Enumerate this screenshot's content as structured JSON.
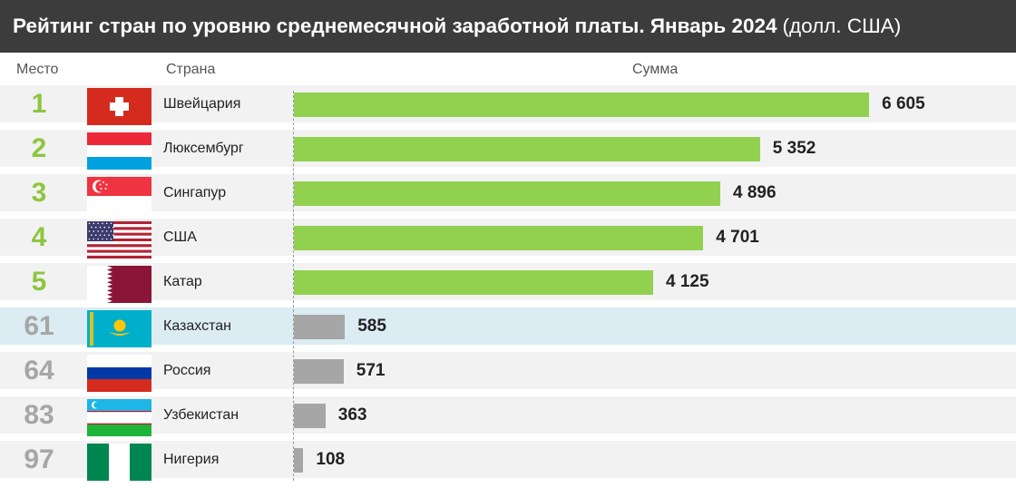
{
  "header": {
    "title_bold": "Рейтинг стран по уровню среднемесячной заработной платы. Январь 2024",
    "title_unit": "(долл. США)"
  },
  "columns": {
    "rank": "Место",
    "country": "Страна",
    "amount": "Сумма"
  },
  "colors": {
    "top_rank": "#8dc63f",
    "top_bar": "#92d050",
    "other_rank": "#a6a6a6",
    "other_bar": "#a6a6a6",
    "highlight_row": "#dbecf2",
    "title_background": "#3c3c3c"
  },
  "chart_data": {
    "type": "bar",
    "orientation": "horizontal",
    "title": "Рейтинг стран по уровню среднемесячной заработной платы. Январь 2024 (долл. США)",
    "xlabel": "Сумма",
    "ylabel": "Страна",
    "xlim": [
      0,
      7000
    ],
    "grid": false,
    "legend": "none",
    "categories": [
      "Швейцария",
      "Люксембург",
      "Сингапур",
      "США",
      "Катар",
      "Казахстан",
      "Россия",
      "Узбекистан",
      "Нигерия"
    ],
    "values": [
      6605,
      5352,
      4896,
      4701,
      4125,
      585,
      571,
      363,
      108
    ],
    "rows": [
      {
        "rank": "1",
        "country": "Швейцария",
        "value": 6605,
        "value_label": "6 605",
        "flag": "switzerland-flag-icon",
        "group": "top"
      },
      {
        "rank": "2",
        "country": "Люксембург",
        "value": 5352,
        "value_label": "5 352",
        "flag": "luxembourg-flag-icon",
        "group": "top"
      },
      {
        "rank": "3",
        "country": "Сингапур",
        "value": 4896,
        "value_label": "4 896",
        "flag": "singapore-flag-icon",
        "group": "top"
      },
      {
        "rank": "4",
        "country": "США",
        "value": 4701,
        "value_label": "4 701",
        "flag": "usa-flag-icon",
        "group": "top"
      },
      {
        "rank": "5",
        "country": "Катар",
        "value": 4125,
        "value_label": "4 125",
        "flag": "qatar-flag-icon",
        "group": "top"
      },
      {
        "rank": "61",
        "country": "Казахстан",
        "value": 585,
        "value_label": "585",
        "flag": "kazakhstan-flag-icon",
        "group": "other",
        "highlight": true
      },
      {
        "rank": "64",
        "country": "Россия",
        "value": 571,
        "value_label": "571",
        "flag": "russia-flag-icon",
        "group": "other"
      },
      {
        "rank": "83",
        "country": "Узбекистан",
        "value": 363,
        "value_label": "363",
        "flag": "uzbekistan-flag-icon",
        "group": "other"
      },
      {
        "rank": "97",
        "country": "Нигерия",
        "value": 108,
        "value_label": "108",
        "flag": "nigeria-flag-icon",
        "group": "other"
      }
    ]
  }
}
